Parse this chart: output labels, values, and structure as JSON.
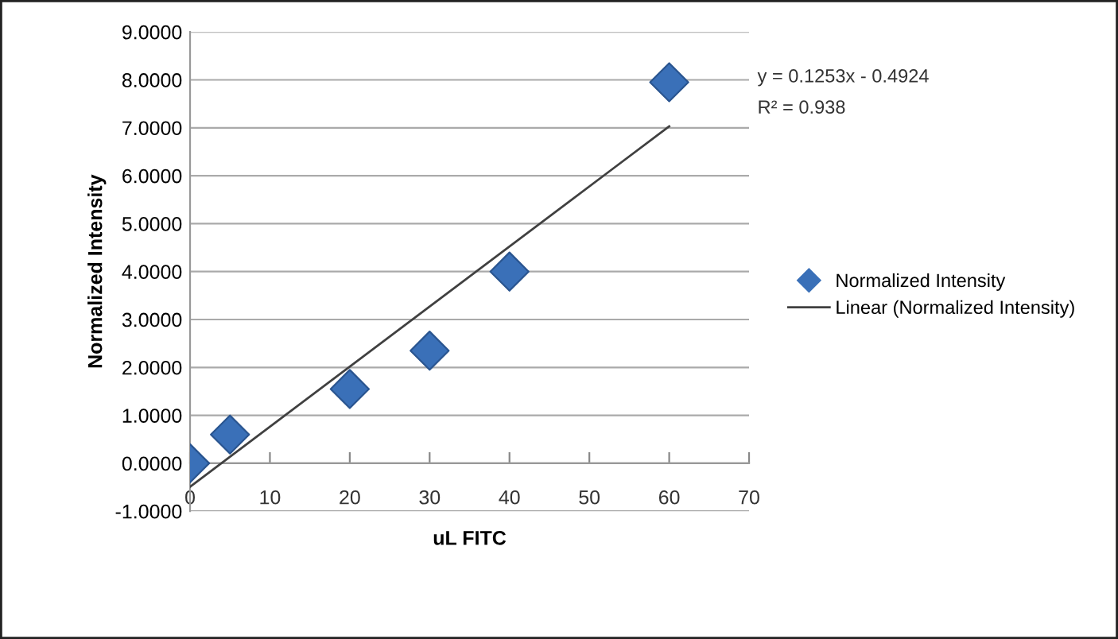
{
  "chart_data": {
    "type": "scatter",
    "xlabel": "uL FITC",
    "ylabel": "Normalized Intensity",
    "x": [
      0,
      5,
      20,
      30,
      40,
      60
    ],
    "series": [
      {
        "name": "Normalized Intensity",
        "color": "#3a70b8",
        "marker": "diamond",
        "values": [
          0.0,
          0.6,
          1.55,
          2.35,
          4.0,
          7.95
        ]
      },
      {
        "name": "Linear (Normalized Intensity)",
        "type": "line",
        "color": "#404040",
        "line_style": "solid",
        "marker": "none",
        "x": [
          0,
          60
        ],
        "values": [
          -0.49,
          7.03
        ]
      }
    ],
    "annotations": [
      "y = 0.1253x - 0.4924",
      "R² = 0.938"
    ],
    "xlim": [
      0,
      70
    ],
    "xticks": [
      0,
      10,
      20,
      30,
      40,
      50,
      60,
      70
    ],
    "ylim": [
      -1,
      9
    ],
    "yticks": [
      {
        "value": -1,
        "label": "-1.0000"
      },
      {
        "value": 0,
        "label": "0.0000"
      },
      {
        "value": 1,
        "label": "1.0000"
      },
      {
        "value": 2,
        "label": "2.0000"
      },
      {
        "value": 3,
        "label": "3.0000"
      },
      {
        "value": 4,
        "label": "4.0000"
      },
      {
        "value": 5,
        "label": "5.0000"
      },
      {
        "value": 6,
        "label": "6.0000"
      },
      {
        "value": 7,
        "label": "7.0000"
      },
      {
        "value": 8,
        "label": "8.0000"
      },
      {
        "value": 9,
        "label": "9.0000"
      }
    ],
    "grid": "y",
    "legend": "right"
  }
}
